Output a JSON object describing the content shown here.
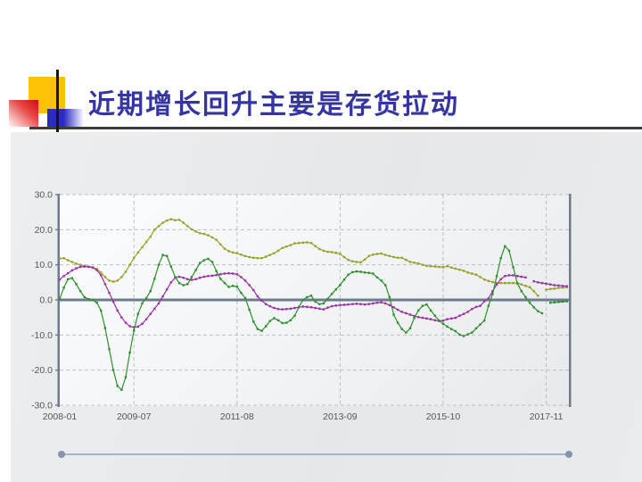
{
  "slide": {
    "title": "近期增长回升主要是存货拉动",
    "title_color": "#3434a2",
    "decoration": {
      "yellow_square": "#fec106",
      "red_square": "#d31212",
      "blue_square": "#2a2ac4",
      "rule_color": "#3c3c3c"
    }
  },
  "chart_data": {
    "type": "line",
    "title": "",
    "xlabel": "",
    "ylabel": "",
    "legend": "none",
    "grid": "dashed",
    "ylim": [
      -30,
      30
    ],
    "y_ticks": [
      30,
      20,
      10,
      0,
      -10,
      -20,
      -30
    ],
    "y_tick_labels": [
      "30.0",
      "20.0",
      "10.0",
      "0.0",
      "-10.0",
      "-20.0",
      "-30.0"
    ],
    "x_start": "2008-01",
    "x_end": "2018-04",
    "x_tick_labels": [
      "2008-01",
      "2009-07",
      "2011-08",
      "2013-09",
      "2015-10",
      "2017-11"
    ],
    "x_tick_month_index": [
      0,
      18,
      43,
      68,
      93,
      118
    ],
    "series": [
      {
        "name": "olive-series",
        "color": "#9aa02e",
        "values": [
          11.8,
          11.9,
          11.3,
          10.8,
          10.3,
          10.0,
          9.7,
          9.5,
          9.3,
          8.8,
          7.8,
          6.5,
          5.5,
          5.2,
          5.5,
          6.5,
          8.0,
          10.0,
          12.0,
          13.5,
          15.0,
          16.5,
          18.0,
          20.0,
          21.0,
          22.0,
          22.6,
          23.0,
          22.7,
          22.8,
          22.0,
          21.0,
          20.1,
          19.5,
          19.0,
          18.8,
          18.4,
          17.8,
          17.1,
          15.8,
          14.6,
          13.9,
          13.5,
          13.3,
          12.9,
          12.5,
          12.2,
          12.0,
          11.9,
          11.9,
          12.3,
          12.8,
          13.3,
          14.0,
          14.8,
          15.2,
          15.6,
          16.1,
          16.2,
          16.3,
          16.4,
          16.2,
          15.3,
          14.5,
          14.0,
          13.7,
          13.6,
          13.4,
          13.1,
          12.2,
          11.4,
          11.0,
          10.8,
          10.7,
          11.5,
          12.5,
          12.9,
          13.1,
          13.2,
          12.8,
          12.5,
          12.2,
          12.0,
          12.0,
          11.4,
          10.8,
          10.6,
          10.4,
          10.0,
          9.7,
          9.6,
          9.5,
          9.4,
          9.3,
          9.6,
          9.2,
          8.9,
          8.6,
          8.3,
          7.8,
          7.5,
          7.2,
          6.5,
          5.8,
          5.4,
          5.1,
          4.8,
          4.8,
          4.8,
          4.8,
          4.8,
          4.8,
          4.4,
          4.0,
          3.6,
          2.5,
          1.2,
          null,
          2.9,
          3.1,
          3.2,
          3.4,
          3.5,
          3.6
        ]
      },
      {
        "name": "purple-series",
        "color": "#9a33a3",
        "values": [
          5.8,
          6.8,
          7.6,
          8.4,
          9.0,
          9.4,
          9.5,
          9.4,
          9.2,
          8.5,
          7.0,
          4.5,
          2.0,
          -0.5,
          -3.0,
          -5.0,
          -6.5,
          -7.5,
          -7.8,
          -7.6,
          -6.8,
          -5.5,
          -4.0,
          -2.5,
          -1.0,
          1.0,
          3.0,
          5.0,
          6.3,
          6.6,
          6.3,
          5.9,
          5.7,
          5.9,
          6.3,
          6.6,
          6.8,
          6.9,
          7.1,
          7.3,
          7.5,
          7.6,
          7.5,
          7.3,
          6.5,
          5.5,
          4.2,
          2.8,
          1.0,
          -0.2,
          -1.2,
          -1.8,
          -2.3,
          -2.6,
          -2.7,
          -2.6,
          -2.5,
          -2.3,
          -2.1,
          -1.9,
          -2.0,
          -2.1,
          -2.3,
          -2.5,
          -2.7,
          -2.2,
          -1.8,
          -1.6,
          -1.5,
          -1.4,
          -1.3,
          -1.2,
          -1.1,
          -1.2,
          -1.3,
          -1.2,
          -1.0,
          -0.8,
          -0.7,
          -1.0,
          -1.5,
          -2.1,
          -2.8,
          -3.4,
          -3.8,
          -4.2,
          -4.6,
          -4.9,
          -5.1,
          -5.3,
          -5.5,
          -5.8,
          -6.0,
          -5.9,
          -5.5,
          -5.3,
          -5.1,
          -4.5,
          -4.0,
          -3.4,
          -2.6,
          -2.0,
          -1.7,
          -0.4,
          0.4,
          2.5,
          4.4,
          5.9,
          6.8,
          7.0,
          7.0,
          6.8,
          6.6,
          6.4,
          null,
          5.3,
          5.0,
          4.8,
          4.6,
          4.4,
          4.2,
          4.1,
          4.0,
          3.9
        ]
      },
      {
        "name": "green-series",
        "color": "#2f8f2f",
        "values": [
          0.3,
          3.5,
          5.9,
          6.2,
          4.5,
          2.5,
          0.8,
          0.2,
          0.0,
          -0.8,
          -3.0,
          -8.0,
          -14.0,
          -20.0,
          -24.5,
          -25.6,
          -22.0,
          -15.0,
          -8.7,
          -4.0,
          -1.0,
          0.5,
          2.5,
          6.0,
          10.0,
          12.8,
          12.5,
          9.5,
          6.5,
          4.8,
          4.2,
          4.5,
          6.5,
          8.5,
          10.5,
          11.3,
          11.7,
          10.8,
          8.2,
          6.0,
          4.8,
          3.7,
          4.0,
          3.8,
          2.0,
          0.5,
          -2.8,
          -6.2,
          -8.3,
          -8.8,
          -7.5,
          -6.0,
          -5.2,
          -5.8,
          -6.6,
          -6.5,
          -5.8,
          -4.5,
          -2.0,
          0.0,
          0.8,
          1.2,
          -0.5,
          -1.2,
          -1.0,
          0.3,
          1.7,
          3.0,
          4.2,
          5.8,
          7.2,
          7.9,
          8.1,
          8.0,
          7.8,
          7.7,
          7.5,
          6.4,
          5.5,
          4.2,
          0.8,
          -4.2,
          -6.5,
          -8.3,
          -9.3,
          -8.1,
          -5.1,
          -3.0,
          -1.7,
          -1.3,
          -3.0,
          -4.5,
          -5.9,
          -6.8,
          -7.6,
          -8.3,
          -8.9,
          -9.9,
          -10.3,
          -9.8,
          -9.3,
          -8.1,
          -7.0,
          -5.9,
          -1.7,
          1.7,
          6.8,
          11.9,
          15.3,
          14.0,
          9.3,
          4.7,
          2.5,
          0.8,
          -0.8,
          -2.1,
          -3.2,
          -3.8,
          null,
          -0.8,
          -0.7,
          -0.6,
          -0.5,
          -0.4
        ]
      }
    ],
    "axis_color": "#6d7b8d",
    "gridline_color": "#bcc0c3",
    "label_color": "#565656"
  },
  "slider": {
    "track_color": "#a7b4c7",
    "handle_color": "#8494ac"
  }
}
